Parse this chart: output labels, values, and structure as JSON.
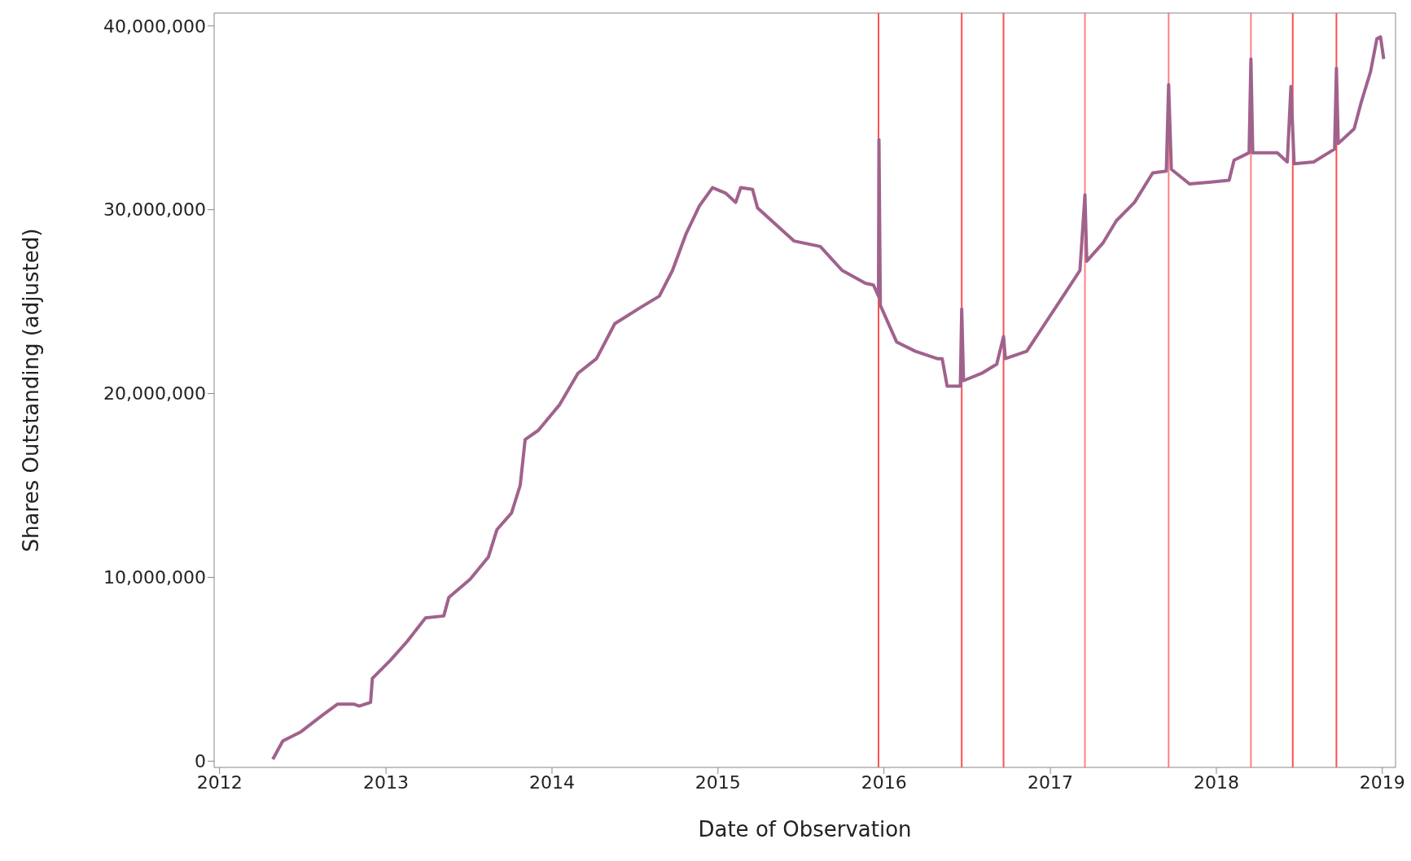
{
  "chart_data": {
    "type": "line",
    "xlabel": "Date of Observation",
    "ylabel": "Shares Outstanding (adjusted)",
    "x": [
      "2012-04-27",
      "2012-05-19",
      "2012-06-28",
      "2012-08-14",
      "2012-09-16",
      "2012-10-23",
      "2012-11-03",
      "2012-11-28",
      "2012-12-02",
      "2013-01-11",
      "2013-02-16",
      "2013-03-29",
      "2013-05-08",
      "2013-05-19",
      "2013-07-05",
      "2013-08-14",
      "2013-09-02",
      "2013-10-04",
      "2013-10-23",
      "2013-11-03",
      "2013-12-02",
      "2014-01-18",
      "2014-02-27",
      "2014-04-09",
      "2014-05-19",
      "2014-07-16",
      "2014-08-25",
      "2014-09-23",
      "2014-10-23",
      "2014-11-21",
      "2014-12-20",
      "2015-01-18",
      "2015-02-09",
      "2015-02-20",
      "2015-03-18",
      "2015-03-29",
      "2015-05-08",
      "2015-06-17",
      "2015-08-14",
      "2015-10-01",
      "2015-11-21",
      "2015-12-09",
      "2015-12-20",
      "2015-12-21",
      "2015-12-24",
      "2016-01-29",
      "2016-03-10",
      "2016-04-27",
      "2016-05-08",
      "2016-05-19",
      "2016-06-17",
      "2016-06-20",
      "2016-06-24",
      "2016-08-03",
      "2016-09-05",
      "2016-09-20",
      "2016-09-24",
      "2016-11-10",
      "2016-12-20",
      "2017-01-29",
      "2017-03-07",
      "2017-03-18",
      "2017-03-22",
      "2017-04-27",
      "2017-05-26",
      "2017-07-05",
      "2017-08-14",
      "2017-09-13",
      "2017-09-18",
      "2017-09-24",
      "2017-11-03",
      "2017-12-20",
      "2018-01-29",
      "2018-02-09",
      "2018-03-14",
      "2018-03-18",
      "2018-03-22",
      "2018-05-15",
      "2018-06-06",
      "2018-06-14",
      "2018-06-21",
      "2018-08-03",
      "2018-09-05",
      "2018-09-18",
      "2018-09-22",
      "2018-09-26",
      "2018-10-31",
      "2018-11-15",
      "2018-12-06",
      "2018-12-20",
      "2018-12-28",
      "2019-01-04"
    ],
    "series": [
      {
        "color": "#a0628c",
        "values": [
          100000,
          1100000,
          1600000,
          2500000,
          3100000,
          3100000,
          3000000,
          3200000,
          4500000,
          5500000,
          6500000,
          7800000,
          7900000,
          8900000,
          9900000,
          11100000,
          12600000,
          13500000,
          15000000,
          17500000,
          18000000,
          19400000,
          21100000,
          21900000,
          23800000,
          24700000,
          25300000,
          26700000,
          28700000,
          30200000,
          31200000,
          30900000,
          30400000,
          31200000,
          31100000,
          30100000,
          29200000,
          28300000,
          28000000,
          26700000,
          26000000,
          25900000,
          25300000,
          33800000,
          24800000,
          22800000,
          22300000,
          21900000,
          21900000,
          20400000,
          20400000,
          24600000,
          20700000,
          21100000,
          21600000,
          23100000,
          21900000,
          22300000,
          23800000,
          25300000,
          26700000,
          30800000,
          27200000,
          28200000,
          29400000,
          30400000,
          32000000,
          32100000,
          36800000,
          32200000,
          31400000,
          31500000,
          31600000,
          32700000,
          33100000,
          38200000,
          33100000,
          33100000,
          32600000,
          36700000,
          32500000,
          32600000,
          33100000,
          33300000,
          37700000,
          33600000,
          34400000,
          35800000,
          37500000,
          39300000,
          39400000,
          38200000
        ]
      }
    ],
    "xlim": [
      "2011-12-20",
      "2019-01-30"
    ],
    "xticks": [
      "2012",
      "2013",
      "2014",
      "2015",
      "2016",
      "2017",
      "2018",
      "2019"
    ],
    "ylim": [
      -340000,
      40700000
    ],
    "yticks": [
      0,
      {
        "value": 10000000,
        "label": "10,000,000"
      },
      {
        "value": 20000000,
        "label": "20,000,000"
      },
      {
        "value": 30000000,
        "label": "30,000,000"
      },
      {
        "value": 40000000,
        "label": "40,000,000"
      }
    ],
    "ref_lines": [
      {
        "axis": "x",
        "value": "2015-12-20",
        "color": "#ff5050"
      },
      {
        "axis": "x",
        "value": "2016-06-20",
        "color": "#ff5050"
      },
      {
        "axis": "x",
        "value": "2016-09-20",
        "color": "#ff5050"
      },
      {
        "axis": "x",
        "value": "2017-03-18",
        "color": "#ff8080"
      },
      {
        "axis": "x",
        "value": "2017-09-18",
        "color": "#ff8080"
      },
      {
        "axis": "x",
        "value": "2018-03-18",
        "color": "#ff8080"
      },
      {
        "axis": "x",
        "value": "2018-06-18",
        "color": "#ff5050"
      },
      {
        "axis": "x",
        "value": "2018-09-22",
        "color": "#ff5050"
      }
    ],
    "grid": false,
    "legend": false,
    "marker": "none",
    "line_style": "solid"
  }
}
